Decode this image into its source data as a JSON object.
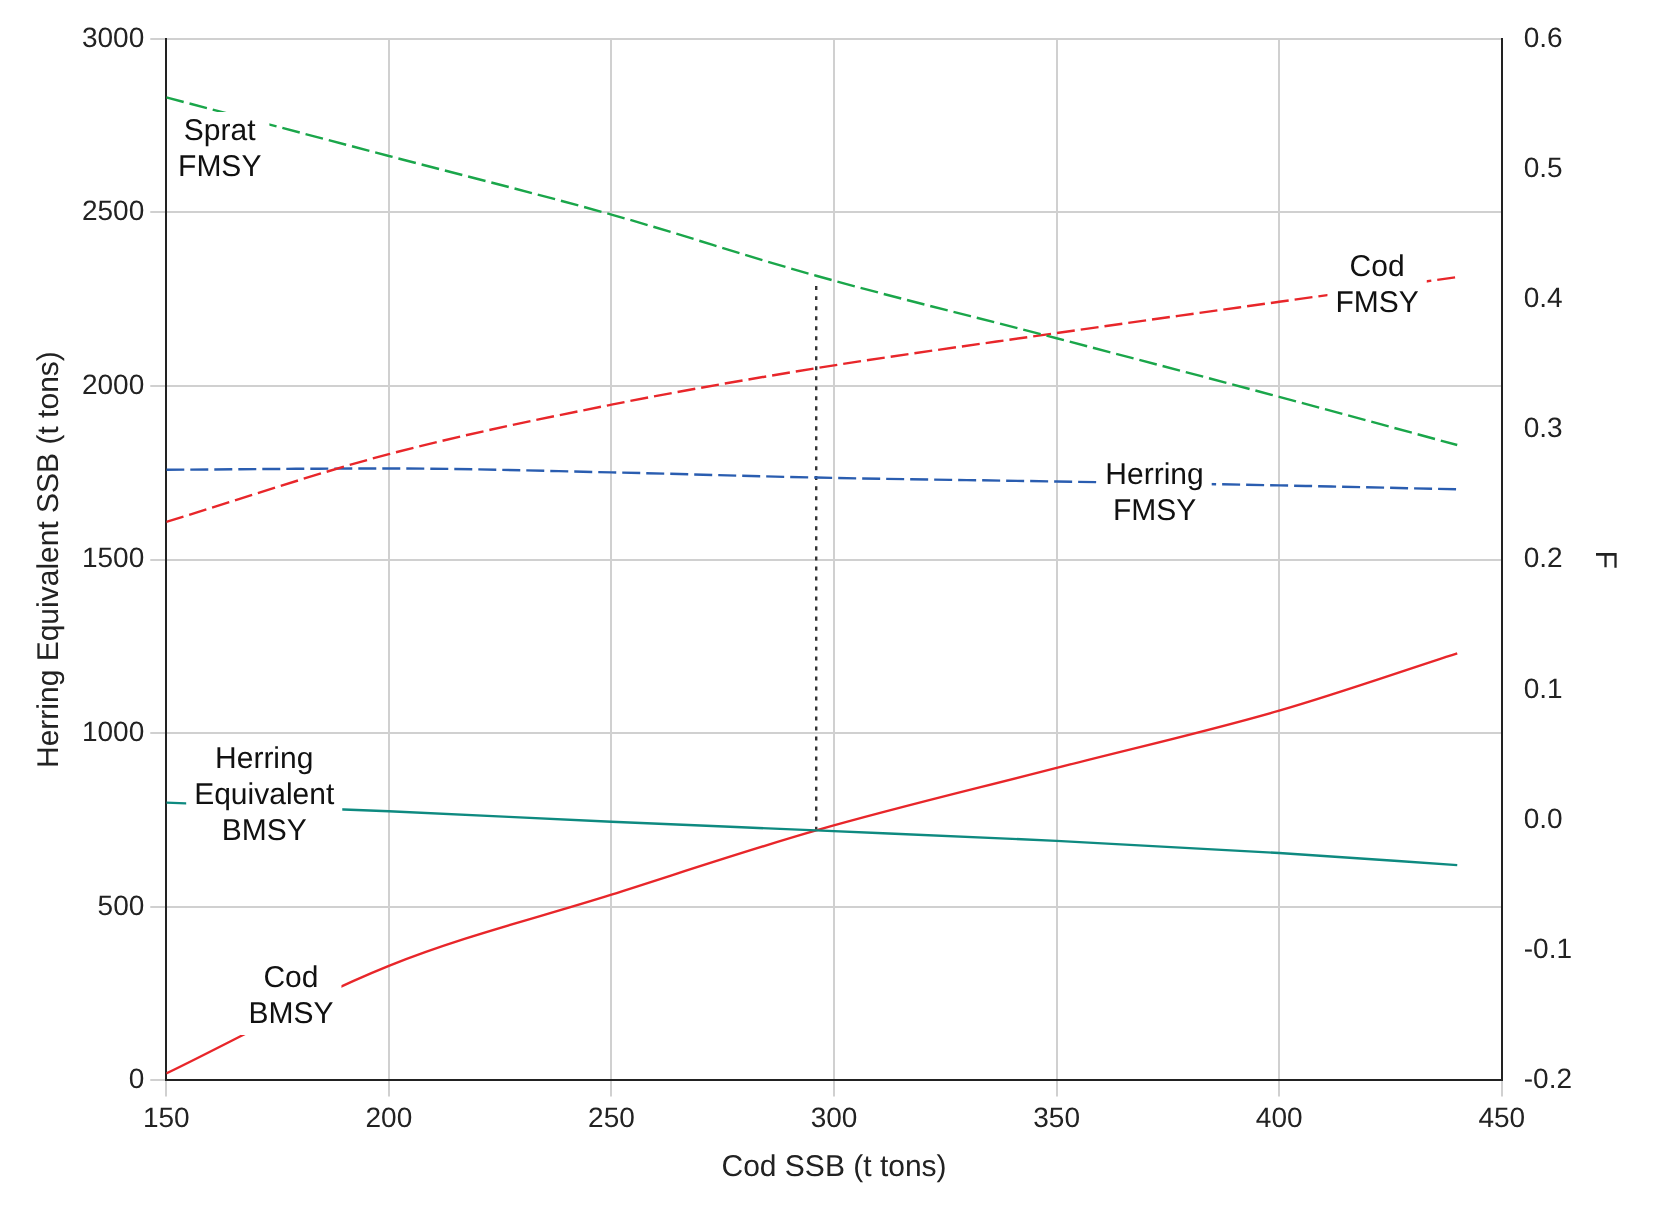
{
  "chart_data": {
    "type": "line",
    "xlabel": "Cod SSB (t tons)",
    "ylabel": "Herring Equivalent SSB (t tons)",
    "y2label": "F",
    "xlim": [
      150,
      450
    ],
    "xticks": [
      150,
      200,
      250,
      300,
      350,
      400,
      450
    ],
    "ylim": [
      0,
      3000
    ],
    "yticks": [
      0,
      500,
      1000,
      1500,
      2000,
      2500,
      3000
    ],
    "y2lim": [
      -0.2,
      0.6
    ],
    "y2ticks": [
      -0.2,
      -0.1,
      {
        "value": 0,
        "label": "0.0"
      },
      0.1,
      0.2,
      0.3,
      0.4,
      0.5,
      0.6
    ],
    "grid": true,
    "legend": false,
    "marker": "none",
    "x": [
      150,
      200,
      250,
      296,
      350,
      400,
      440
    ],
    "series": [
      {
        "name": "Sprat FMSY",
        "color": "#1aa64a",
        "axis": "y2",
        "line_style": "dashed",
        "values": [
          0.555,
          0.51,
          0.465,
          0.418,
          0.37,
          0.325,
          0.288
        ]
      },
      {
        "name": "Cod FMSY",
        "color": "#e8262a",
        "axis": "y2",
        "line_style": "dashed",
        "values": [
          0.229,
          0.281,
          0.319,
          0.347,
          0.374,
          0.398,
          0.417
        ]
      },
      {
        "name": "Herring FMSY",
        "color": "#2a5db0",
        "axis": "y2",
        "line_style": "dashed",
        "values": [
          0.269,
          0.27,
          0.267,
          0.263,
          0.26,
          0.257,
          0.254
        ]
      },
      {
        "name": "Herring Equivalent BMSY",
        "color": "#0e8a80",
        "line_style": "solid",
        "values": [
          800,
          775,
          745,
          720,
          690,
          655,
          620
        ]
      },
      {
        "name": "Cod BMSY",
        "color": "#e8262a",
        "line_style": "solid",
        "values": [
          20,
          330,
          535,
          720,
          900,
          1065,
          1230
        ]
      },
      {
        "type": "line",
        "color": "#333333",
        "line_style": "dotted",
        "x": [
          296,
          296
        ],
        "values": [
          720,
          2300
        ]
      }
    ]
  }
}
